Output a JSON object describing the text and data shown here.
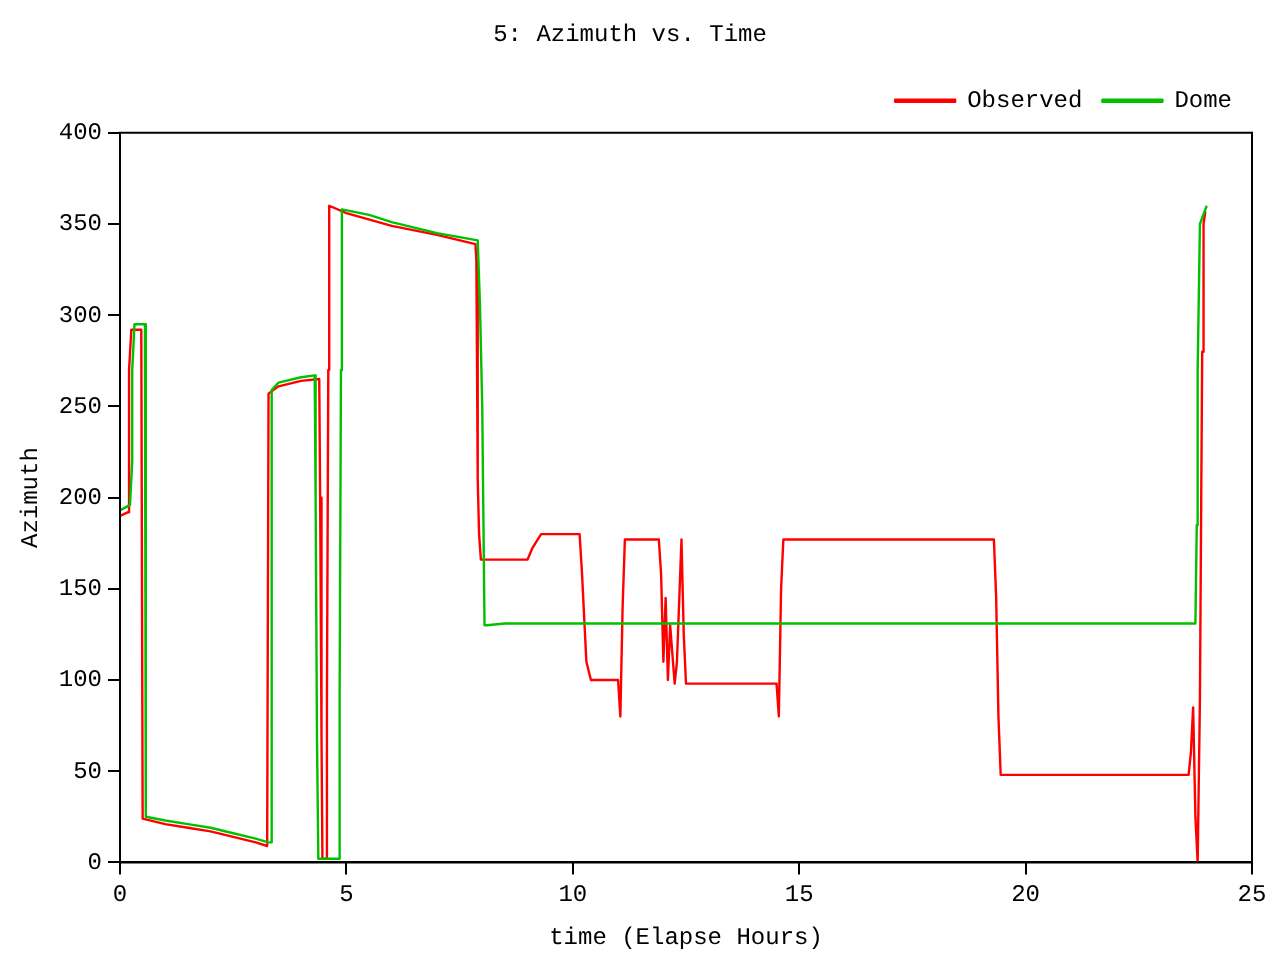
{
  "chart_data": {
    "type": "line",
    "title": "5: Azimuth vs. Time",
    "xlabel": "time (Elapse Hours)",
    "ylabel": "Azimuth",
    "xlim": [
      0,
      25
    ],
    "xticks": [
      0,
      5,
      10,
      15,
      20,
      25
    ],
    "ylim": [
      0,
      400
    ],
    "yticks": [
      0,
      50,
      100,
      150,
      200,
      250,
      300,
      350,
      400
    ],
    "grid": false,
    "legend": "top right",
    "marker": "none",
    "line_style": "solid",
    "series": [
      {
        "name": "Observed",
        "color": "#ff0000",
        "x": [
          0,
          0.18,
          0.2,
          0.25,
          0.47,
          0.5,
          1.0,
          1.5,
          2.0,
          2.5,
          3.0,
          3.25,
          3.28,
          3.5,
          4.0,
          4.4,
          4.42,
          4.45,
          4.47,
          4.55,
          4.57,
          4.6,
          4.62,
          5.0,
          6.0,
          7.0,
          7.85,
          7.87,
          7.9,
          7.93,
          7.97,
          9.0,
          9.1,
          9.3,
          10.15,
          10.2,
          10.3,
          10.4,
          11.0,
          11.05,
          11.1,
          11.15,
          11.2,
          11.9,
          11.95,
          12.0,
          12.05,
          12.1,
          12.15,
          12.25,
          12.3,
          12.4,
          12.45,
          12.5,
          12.55,
          12.6,
          14.5,
          14.55,
          14.6,
          14.65,
          19.3,
          19.35,
          19.4,
          19.45,
          23.6,
          23.65,
          23.7,
          23.75,
          23.8,
          23.85,
          23.9,
          23.93,
          23.97
        ],
        "values": [
          190,
          192,
          270,
          292,
          292,
          24,
          21,
          19,
          17,
          14,
          11,
          9,
          257,
          261,
          264,
          265,
          200,
          70,
          2,
          2,
          90,
          270,
          360,
          356,
          349,
          344,
          339,
          330,
          210,
          180,
          166,
          166,
          172,
          180,
          180,
          160,
          110,
          100,
          100,
          80,
          140,
          177,
          177,
          177,
          158,
          110,
          145,
          100,
          130,
          98,
          110,
          177,
          125,
          98,
          98,
          98,
          98,
          80,
          150,
          177,
          177,
          145,
          80,
          48,
          48,
          60,
          85,
          25,
          0,
          90,
          280,
          350,
          357
        ]
      },
      {
        "name": "Dome",
        "color": "#00c000",
        "x": [
          0,
          0.22,
          0.27,
          0.27,
          0.32,
          0.55,
          0.57,
          1.0,
          1.5,
          2.0,
          2.5,
          3.0,
          3.27,
          3.32,
          3.35,
          3.5,
          4.0,
          4.3,
          4.32,
          4.35,
          4.38,
          4.82,
          4.85,
          4.88,
          4.9,
          5.5,
          6.0,
          7.0,
          7.9,
          7.95,
          8.0,
          8.05,
          8.1,
          8.5,
          23.75,
          23.78,
          23.8,
          23.85,
          24.0
        ],
        "values": [
          193,
          196,
          220,
          270,
          295,
          295,
          25,
          23,
          21,
          19,
          16,
          13,
          11,
          11,
          259,
          263,
          266,
          267,
          200,
          68,
          2,
          2,
          90,
          270,
          358,
          355,
          351,
          345,
          341,
          305,
          250,
          130,
          130,
          131,
          131,
          185,
          270,
          350,
          360
        ]
      }
    ]
  }
}
